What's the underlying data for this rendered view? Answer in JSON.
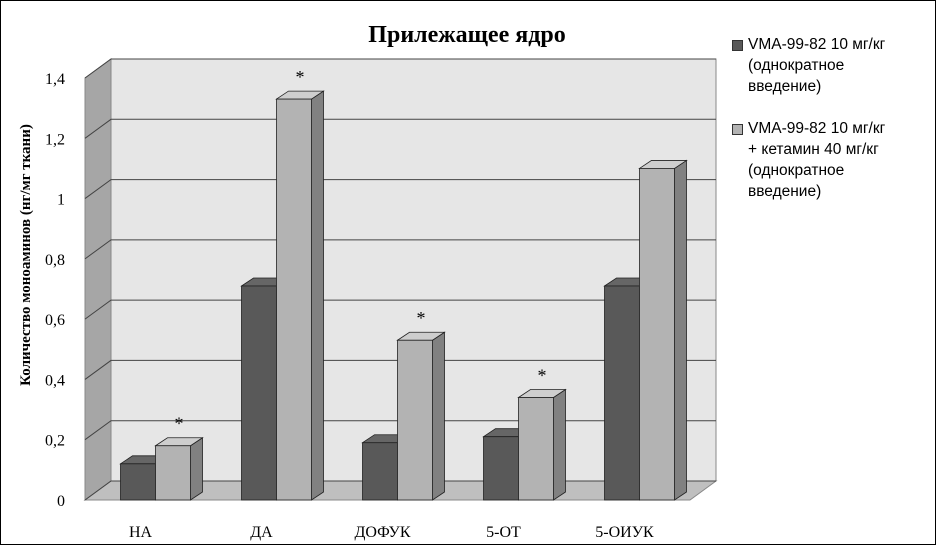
{
  "chart_data": {
    "type": "bar",
    "title": "Прилежащее ядро",
    "ylabel": "Количество моноаминов (нг/мг ткани)",
    "xlabel": "",
    "ylim": [
      0,
      1.4
    ],
    "yticks": [
      "0",
      "0,2",
      "0,4",
      "0,6",
      "0,8",
      "1",
      "1,2",
      "1,4"
    ],
    "categories": [
      "НА",
      "ДА",
      "ДОФУК",
      "5-ОТ",
      "5-ОИУК"
    ],
    "series": [
      {
        "name": "VMA-99-82 10 мг/кг\n(однократное\nвведение)",
        "color": "#595959",
        "values": [
          0.12,
          0.71,
          0.19,
          0.21,
          0.71
        ]
      },
      {
        "name": "VMA-99-82 10 мг/кг\n+ кетамин 40 мг/кг\n(однократное\nвведение)",
        "color": "#b3b3b3",
        "values": [
          0.18,
          1.33,
          0.53,
          0.34,
          1.1
        ]
      }
    ],
    "annotations": [
      "*",
      "*",
      "*",
      "*"
    ],
    "annotation_categories": [
      "НА",
      "ДА",
      "ДОФУК",
      "5-ОТ"
    ],
    "grid": true,
    "legend_position": "right"
  }
}
